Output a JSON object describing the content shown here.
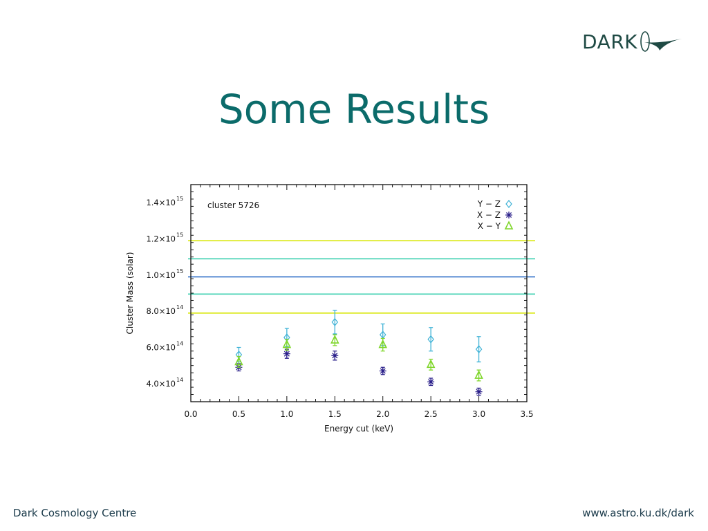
{
  "logo": {
    "text": "DARK"
  },
  "slide": {
    "title": "Some Results"
  },
  "footer": {
    "left": "Dark Cosmology Centre",
    "right": "www.astro.ku.dk/dark"
  },
  "chart_data": {
    "type": "scatter",
    "annotation": "cluster 5726",
    "xlabel": "Energy cut (keV)",
    "ylabel": "Cluster Mass (solar)",
    "xlim": [
      0.0,
      3.5
    ],
    "ylim": [
      300000000000000.0,
      1500000000000000.0
    ],
    "x_ticks": [
      "0.0",
      "0.5",
      "1.0",
      "1.5",
      "2.0",
      "2.5",
      "3.0",
      "3.5"
    ],
    "y_ticks": [
      {
        "value": 400000000000000.0,
        "mantissa": "4.0×10",
        "exp": "14"
      },
      {
        "value": 600000000000000.0,
        "mantissa": "6.0×10",
        "exp": "14"
      },
      {
        "value": 800000000000000.0,
        "mantissa": "8.0×10",
        "exp": "14"
      },
      {
        "value": 1000000000000000.0,
        "mantissa": "1.0×10",
        "exp": "15"
      },
      {
        "value": 1200000000000000.0,
        "mantissa": "1.2×10",
        "exp": "15"
      },
      {
        "value": 1400000000000000.0,
        "mantissa": "1.4×10",
        "exp": "15"
      }
    ],
    "legend_position": "top-right",
    "hlines": [
      {
        "y": 1190000000000000.0,
        "color": "#d8e600"
      },
      {
        "y": 1090000000000000.0,
        "color": "#3fd0b0"
      },
      {
        "y": 990000000000000.0,
        "color": "#2f6fc8"
      },
      {
        "y": 895000000000000.0,
        "color": "#3fd0b0"
      },
      {
        "y": 790000000000000.0,
        "color": "#d8e600"
      }
    ],
    "series": [
      {
        "name": "Y − Z",
        "marker": "diamond",
        "color": "#3fb2d6",
        "x": [
          0.5,
          1.0,
          1.5,
          2.0,
          2.5,
          3.0
        ],
        "y": [
          560000000000000.0,
          655000000000000.0,
          740000000000000.0,
          670000000000000.0,
          645000000000000.0,
          590000000000000.0
        ],
        "err": [
          40000000000000.0,
          50000000000000.0,
          65000000000000.0,
          60000000000000.0,
          65000000000000.0,
          70000000000000.0
        ]
      },
      {
        "name": "X − Z",
        "marker": "asterisk",
        "color": "#2a1f8a",
        "x": [
          0.5,
          1.0,
          1.5,
          2.0,
          2.5,
          3.0
        ],
        "y": [
          490000000000000.0,
          565000000000000.0,
          555000000000000.0,
          470000000000000.0,
          410000000000000.0,
          355000000000000.0
        ],
        "err": [
          20000000000000.0,
          25000000000000.0,
          25000000000000.0,
          20000000000000.0,
          20000000000000.0,
          20000000000000.0
        ]
      },
      {
        "name": "X − Y",
        "marker": "triangle",
        "color": "#7fd62a",
        "x": [
          0.5,
          1.0,
          1.5,
          2.0,
          2.5,
          3.0
        ],
        "y": [
          520000000000000.0,
          615000000000000.0,
          640000000000000.0,
          615000000000000.0,
          505000000000000.0,
          445000000000000.0
        ],
        "err": [
          30000000000000.0,
          30000000000000.0,
          30000000000000.0,
          35000000000000.0,
          30000000000000.0,
          30000000000000.0
        ]
      }
    ]
  }
}
